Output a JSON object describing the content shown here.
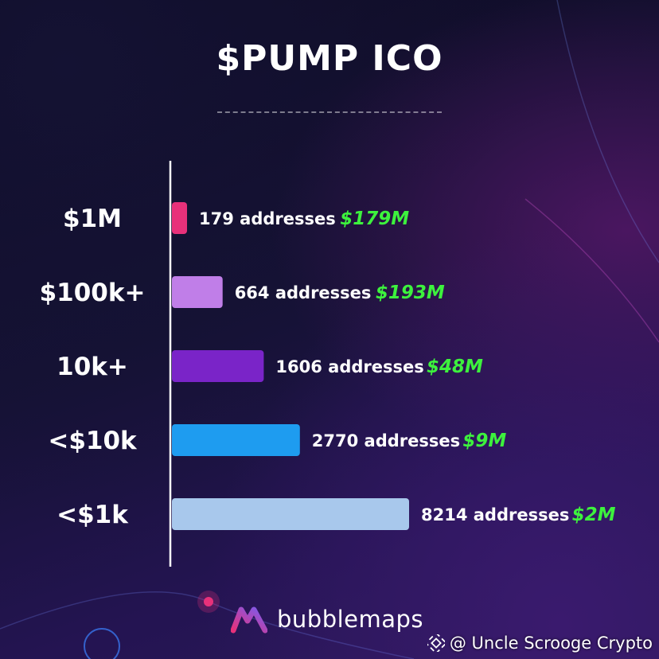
{
  "title": "$PUMP ICO",
  "brand": {
    "name": "bubblemaps",
    "logo_icon": "bubblemaps-logo-icon"
  },
  "watermark": {
    "text": "@ Uncle Scrooge Crypto",
    "icon": "binance-diamond-icon"
  },
  "colors": {
    "value_text": "#3df23d",
    "bar_tier_1m": "#e8317a",
    "bar_tier_100k": "#c07ee8",
    "bar_tier_10k": "#7a24c8",
    "bar_tier_lt10k": "#1e9cf0",
    "bar_tier_lt1k": "#a8c8ec"
  },
  "chart_data": {
    "type": "bar",
    "orientation": "horizontal",
    "title": "$PUMP ICO",
    "categories": [
      "$1M",
      "$100k+",
      "10k+",
      "<$10k",
      "<$1k"
    ],
    "values": [
      179,
      664,
      1606,
      2770,
      8214
    ],
    "value_labels": [
      "179 addresses",
      "664 addresses",
      "1606 addresses",
      "2770 addresses",
      "8214 addresses"
    ],
    "amount_labels": [
      "$179M",
      "$193M",
      "$48M",
      "$9M",
      "$2M"
    ],
    "grid": false,
    "legend": "none"
  }
}
